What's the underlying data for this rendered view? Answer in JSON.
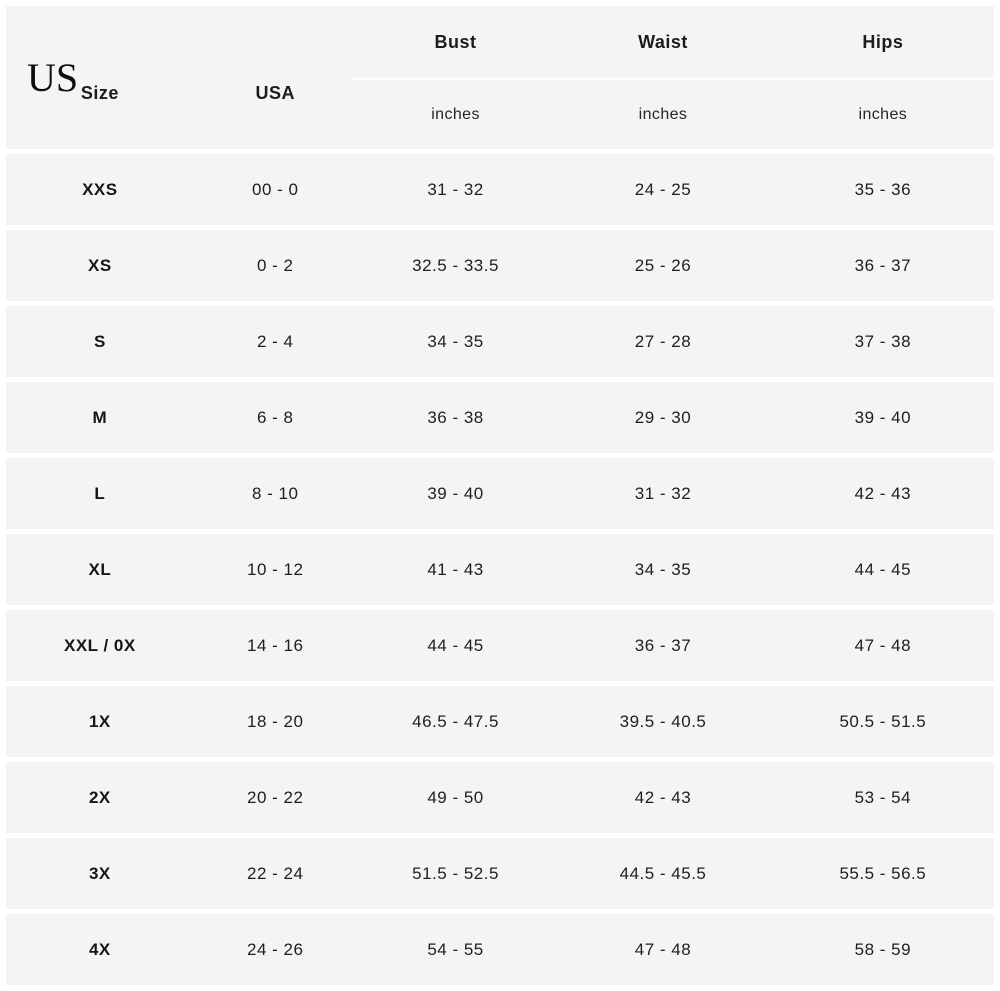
{
  "chart_data": {
    "type": "table",
    "corner_label": "US",
    "columns": [
      {
        "key": "size",
        "label": "Size"
      },
      {
        "key": "usa",
        "label": "USA"
      },
      {
        "key": "bust",
        "label": "Bust",
        "unit": "inches"
      },
      {
        "key": "waist",
        "label": "Waist",
        "unit": "inches"
      },
      {
        "key": "hips",
        "label": "Hips",
        "unit": "inches"
      }
    ],
    "rows": [
      [
        "XXS",
        "00 - 0",
        "31 - 32",
        "24 - 25",
        "35 - 36"
      ],
      [
        "XS",
        "0 - 2",
        "32.5 - 33.5",
        "25 - 26",
        "36 - 37"
      ],
      [
        "S",
        "2 - 4",
        "34 - 35",
        "27 - 28",
        "37 - 38"
      ],
      [
        "M",
        "6 - 8",
        "36 - 38",
        "29 - 30",
        "39 - 40"
      ],
      [
        "L",
        "8 - 10",
        "39 - 40",
        "31 - 32",
        "42 - 43"
      ],
      [
        "XL",
        "10 - 12",
        "41 - 43",
        "34 - 35",
        "44 - 45"
      ],
      [
        "XXL / 0X",
        "14 - 16",
        "44 - 45",
        "36 - 37",
        "47 - 48"
      ],
      [
        "1X",
        "18 - 20",
        "46.5 - 47.5",
        "39.5 - 40.5",
        "50.5 - 51.5"
      ],
      [
        "2X",
        "20 - 22",
        "49 - 50",
        "42 - 43",
        "53 - 54"
      ],
      [
        "3X",
        "22 - 24",
        "51.5 - 52.5",
        "44.5 - 45.5",
        "55.5 - 56.5"
      ],
      [
        "4X",
        "24 - 26",
        "54 - 55",
        "47 - 48",
        "58 - 59"
      ]
    ],
    "colors": {
      "row_background": "#f4f4f4",
      "gap_background": "#ffffff",
      "text": "#1e1e1e"
    }
  }
}
